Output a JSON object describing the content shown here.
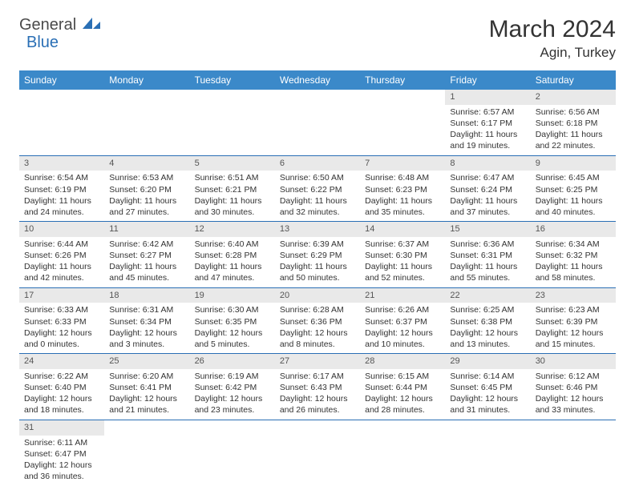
{
  "brand": {
    "general": "General",
    "blue": "Blue"
  },
  "title": "March 2024",
  "location": "Agin, Turkey",
  "colors": {
    "header_bg": "#3b89c9",
    "header_text": "#ffffff",
    "daynum_bg": "#e9e9e9",
    "row_border": "#2a6fb5",
    "logo_blue": "#2a6fb5",
    "text": "#333333"
  },
  "day_headers": [
    "Sunday",
    "Monday",
    "Tuesday",
    "Wednesday",
    "Thursday",
    "Friday",
    "Saturday"
  ],
  "weeks": [
    {
      "nums": [
        "",
        "",
        "",
        "",
        "",
        "1",
        "2"
      ],
      "cells": [
        null,
        null,
        null,
        null,
        null,
        {
          "sr": "Sunrise: 6:57 AM",
          "ss": "Sunset: 6:17 PM",
          "d1": "Daylight: 11 hours",
          "d2": "and 19 minutes."
        },
        {
          "sr": "Sunrise: 6:56 AM",
          "ss": "Sunset: 6:18 PM",
          "d1": "Daylight: 11 hours",
          "d2": "and 22 minutes."
        }
      ]
    },
    {
      "nums": [
        "3",
        "4",
        "5",
        "6",
        "7",
        "8",
        "9"
      ],
      "cells": [
        {
          "sr": "Sunrise: 6:54 AM",
          "ss": "Sunset: 6:19 PM",
          "d1": "Daylight: 11 hours",
          "d2": "and 24 minutes."
        },
        {
          "sr": "Sunrise: 6:53 AM",
          "ss": "Sunset: 6:20 PM",
          "d1": "Daylight: 11 hours",
          "d2": "and 27 minutes."
        },
        {
          "sr": "Sunrise: 6:51 AM",
          "ss": "Sunset: 6:21 PM",
          "d1": "Daylight: 11 hours",
          "d2": "and 30 minutes."
        },
        {
          "sr": "Sunrise: 6:50 AM",
          "ss": "Sunset: 6:22 PM",
          "d1": "Daylight: 11 hours",
          "d2": "and 32 minutes."
        },
        {
          "sr": "Sunrise: 6:48 AM",
          "ss": "Sunset: 6:23 PM",
          "d1": "Daylight: 11 hours",
          "d2": "and 35 minutes."
        },
        {
          "sr": "Sunrise: 6:47 AM",
          "ss": "Sunset: 6:24 PM",
          "d1": "Daylight: 11 hours",
          "d2": "and 37 minutes."
        },
        {
          "sr": "Sunrise: 6:45 AM",
          "ss": "Sunset: 6:25 PM",
          "d1": "Daylight: 11 hours",
          "d2": "and 40 minutes."
        }
      ]
    },
    {
      "nums": [
        "10",
        "11",
        "12",
        "13",
        "14",
        "15",
        "16"
      ],
      "cells": [
        {
          "sr": "Sunrise: 6:44 AM",
          "ss": "Sunset: 6:26 PM",
          "d1": "Daylight: 11 hours",
          "d2": "and 42 minutes."
        },
        {
          "sr": "Sunrise: 6:42 AM",
          "ss": "Sunset: 6:27 PM",
          "d1": "Daylight: 11 hours",
          "d2": "and 45 minutes."
        },
        {
          "sr": "Sunrise: 6:40 AM",
          "ss": "Sunset: 6:28 PM",
          "d1": "Daylight: 11 hours",
          "d2": "and 47 minutes."
        },
        {
          "sr": "Sunrise: 6:39 AM",
          "ss": "Sunset: 6:29 PM",
          "d1": "Daylight: 11 hours",
          "d2": "and 50 minutes."
        },
        {
          "sr": "Sunrise: 6:37 AM",
          "ss": "Sunset: 6:30 PM",
          "d1": "Daylight: 11 hours",
          "d2": "and 52 minutes."
        },
        {
          "sr": "Sunrise: 6:36 AM",
          "ss": "Sunset: 6:31 PM",
          "d1": "Daylight: 11 hours",
          "d2": "and 55 minutes."
        },
        {
          "sr": "Sunrise: 6:34 AM",
          "ss": "Sunset: 6:32 PM",
          "d1": "Daylight: 11 hours",
          "d2": "and 58 minutes."
        }
      ]
    },
    {
      "nums": [
        "17",
        "18",
        "19",
        "20",
        "21",
        "22",
        "23"
      ],
      "cells": [
        {
          "sr": "Sunrise: 6:33 AM",
          "ss": "Sunset: 6:33 PM",
          "d1": "Daylight: 12 hours",
          "d2": "and 0 minutes."
        },
        {
          "sr": "Sunrise: 6:31 AM",
          "ss": "Sunset: 6:34 PM",
          "d1": "Daylight: 12 hours",
          "d2": "and 3 minutes."
        },
        {
          "sr": "Sunrise: 6:30 AM",
          "ss": "Sunset: 6:35 PM",
          "d1": "Daylight: 12 hours",
          "d2": "and 5 minutes."
        },
        {
          "sr": "Sunrise: 6:28 AM",
          "ss": "Sunset: 6:36 PM",
          "d1": "Daylight: 12 hours",
          "d2": "and 8 minutes."
        },
        {
          "sr": "Sunrise: 6:26 AM",
          "ss": "Sunset: 6:37 PM",
          "d1": "Daylight: 12 hours",
          "d2": "and 10 minutes."
        },
        {
          "sr": "Sunrise: 6:25 AM",
          "ss": "Sunset: 6:38 PM",
          "d1": "Daylight: 12 hours",
          "d2": "and 13 minutes."
        },
        {
          "sr": "Sunrise: 6:23 AM",
          "ss": "Sunset: 6:39 PM",
          "d1": "Daylight: 12 hours",
          "d2": "and 15 minutes."
        }
      ]
    },
    {
      "nums": [
        "24",
        "25",
        "26",
        "27",
        "28",
        "29",
        "30"
      ],
      "cells": [
        {
          "sr": "Sunrise: 6:22 AM",
          "ss": "Sunset: 6:40 PM",
          "d1": "Daylight: 12 hours",
          "d2": "and 18 minutes."
        },
        {
          "sr": "Sunrise: 6:20 AM",
          "ss": "Sunset: 6:41 PM",
          "d1": "Daylight: 12 hours",
          "d2": "and 21 minutes."
        },
        {
          "sr": "Sunrise: 6:19 AM",
          "ss": "Sunset: 6:42 PM",
          "d1": "Daylight: 12 hours",
          "d2": "and 23 minutes."
        },
        {
          "sr": "Sunrise: 6:17 AM",
          "ss": "Sunset: 6:43 PM",
          "d1": "Daylight: 12 hours",
          "d2": "and 26 minutes."
        },
        {
          "sr": "Sunrise: 6:15 AM",
          "ss": "Sunset: 6:44 PM",
          "d1": "Daylight: 12 hours",
          "d2": "and 28 minutes."
        },
        {
          "sr": "Sunrise: 6:14 AM",
          "ss": "Sunset: 6:45 PM",
          "d1": "Daylight: 12 hours",
          "d2": "and 31 minutes."
        },
        {
          "sr": "Sunrise: 6:12 AM",
          "ss": "Sunset: 6:46 PM",
          "d1": "Daylight: 12 hours",
          "d2": "and 33 minutes."
        }
      ]
    },
    {
      "nums": [
        "31",
        "",
        "",
        "",
        "",
        "",
        ""
      ],
      "cells": [
        {
          "sr": "Sunrise: 6:11 AM",
          "ss": "Sunset: 6:47 PM",
          "d1": "Daylight: 12 hours",
          "d2": "and 36 minutes."
        },
        null,
        null,
        null,
        null,
        null,
        null
      ]
    }
  ]
}
